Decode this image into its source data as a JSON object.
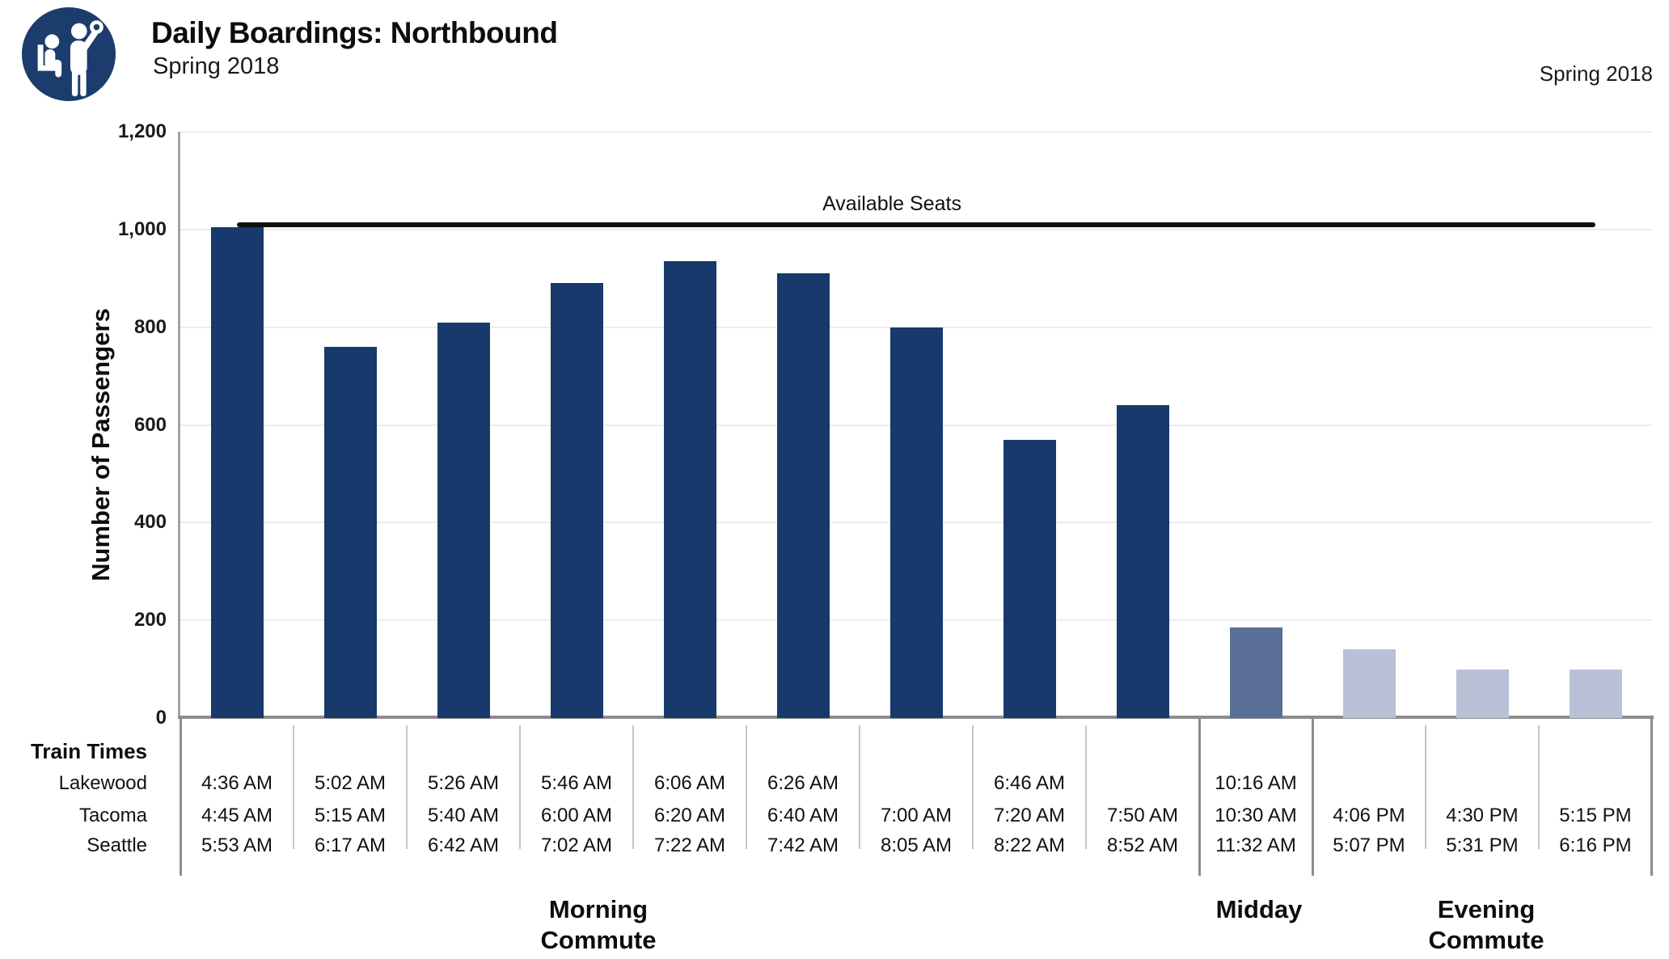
{
  "header": {
    "title": "Daily Boardings: Northbound",
    "subtitle": "Spring 2018",
    "corner_label": "Spring 2018"
  },
  "logo": {
    "label": "transit-riders-logo",
    "bg_color": "#1C3C6D"
  },
  "table": {
    "header": "Train Times",
    "row_labels": [
      "Lakewood",
      "Tacoma",
      "Seattle"
    ]
  },
  "chart_data": {
    "type": "bar",
    "title": "Daily Boardings: Northbound",
    "subtitle": "Spring 2018",
    "ylabel": "Number of Passengers",
    "xlabel": "",
    "ylim": [
      0,
      1200
    ],
    "yticks": [
      0,
      200,
      400,
      600,
      800,
      1000,
      1200
    ],
    "ytick_labels": [
      "0",
      "200",
      "400",
      "600",
      "800",
      "1,000",
      "1,200"
    ],
    "grid": "horizontal-gridlines",
    "legend": "none",
    "reference_line": {
      "label": "Available Seats",
      "value": 1010
    },
    "period_colors": {
      "morning": "#17396B",
      "midday": "#5A7097",
      "evening": "#BAC1D6"
    },
    "groups": [
      {
        "id": "morning",
        "lines": [
          "Morning",
          "Commute"
        ]
      },
      {
        "id": "midday",
        "lines": [
          "Midday"
        ]
      },
      {
        "id": "evening",
        "lines": [
          "Evening",
          "Commute"
        ]
      }
    ],
    "bars": [
      {
        "period": "morning",
        "lakewood": "4:36 AM",
        "tacoma": "4:45 AM",
        "seattle": "5:53 AM",
        "value": 1005
      },
      {
        "period": "morning",
        "lakewood": "5:02 AM",
        "tacoma": "5:15 AM",
        "seattle": "6:17 AM",
        "value": 760
      },
      {
        "period": "morning",
        "lakewood": "5:26 AM",
        "tacoma": "5:40 AM",
        "seattle": "6:42 AM",
        "value": 810
      },
      {
        "period": "morning",
        "lakewood": "5:46 AM",
        "tacoma": "6:00 AM",
        "seattle": "7:02 AM",
        "value": 890
      },
      {
        "period": "morning",
        "lakewood": "6:06 AM",
        "tacoma": "6:20 AM",
        "seattle": "7:22 AM",
        "value": 935
      },
      {
        "period": "morning",
        "lakewood": "6:26 AM",
        "tacoma": "6:40 AM",
        "seattle": "7:42 AM",
        "value": 910
      },
      {
        "period": "morning",
        "lakewood": "",
        "tacoma": "7:00 AM",
        "seattle": "8:05 AM",
        "value": 800
      },
      {
        "period": "morning",
        "lakewood": "6:46 AM",
        "tacoma": "7:20 AM",
        "seattle": "8:22 AM",
        "value": 570
      },
      {
        "period": "morning",
        "lakewood": "",
        "tacoma": "7:50 AM",
        "seattle": "8:52 AM",
        "value": 640
      },
      {
        "period": "midday",
        "lakewood": "10:16 AM",
        "tacoma": "10:30 AM",
        "seattle": "11:32 AM",
        "value": 185
      },
      {
        "period": "evening",
        "lakewood": "",
        "tacoma": "4:06 PM",
        "seattle": "5:07 PM",
        "value": 140
      },
      {
        "period": "evening",
        "lakewood": "",
        "tacoma": "4:30 PM",
        "seattle": "5:31 PM",
        "value": 100
      },
      {
        "period": "evening",
        "lakewood": "",
        "tacoma": "5:15 PM",
        "seattle": "6:16 PM",
        "value": 100
      }
    ]
  }
}
